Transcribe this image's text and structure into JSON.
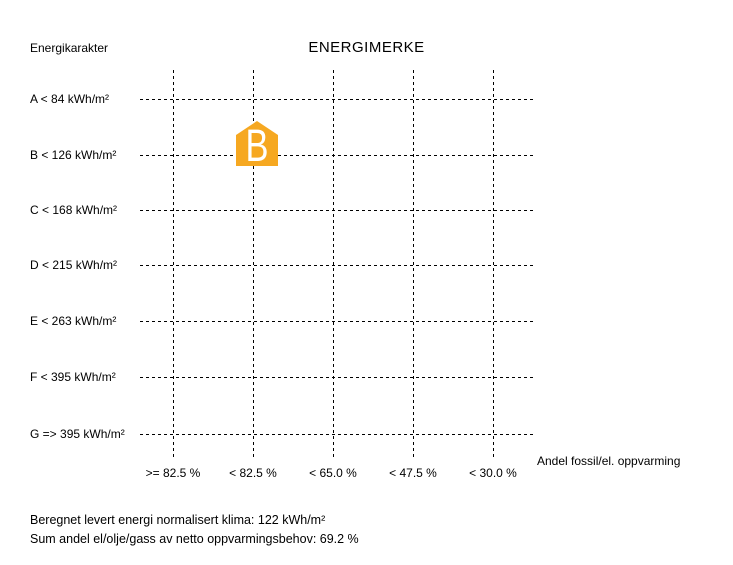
{
  "chart_data": {
    "type": "scatter",
    "title": "ENERGIMERKE",
    "y_axis_label": "Energikarakter",
    "x_axis_label": "Andel fossil/el. oppvarming",
    "y_categories": [
      "A < 84 kWh/m²",
      "B < 126 kWh/m²",
      "C < 168 kWh/m²",
      "D < 215 kWh/m²",
      "E < 263 kWh/m²",
      "F < 395 kWh/m²",
      "G => 395 kWh/m²"
    ],
    "x_categories": [
      ">= 82.5 %",
      "< 82.5 %",
      "< 65.0 %",
      "< 47.5 %",
      "< 30.0 %"
    ],
    "grid": "dashed",
    "grid_color": "#000000",
    "marker": {
      "label": "B",
      "shape": "house",
      "color": "#F6A821",
      "text_color": "#FFFFFF",
      "row": "B < 126 kWh/m²",
      "row_index": 1,
      "column": "< 82.5 %",
      "column_index": 1
    },
    "footer": [
      "Beregnet levert energi normalisert klima: 122 kWh/m²",
      "Sum andel el/olje/gass av netto oppvarmingsbehov: 69.2 %"
    ]
  }
}
